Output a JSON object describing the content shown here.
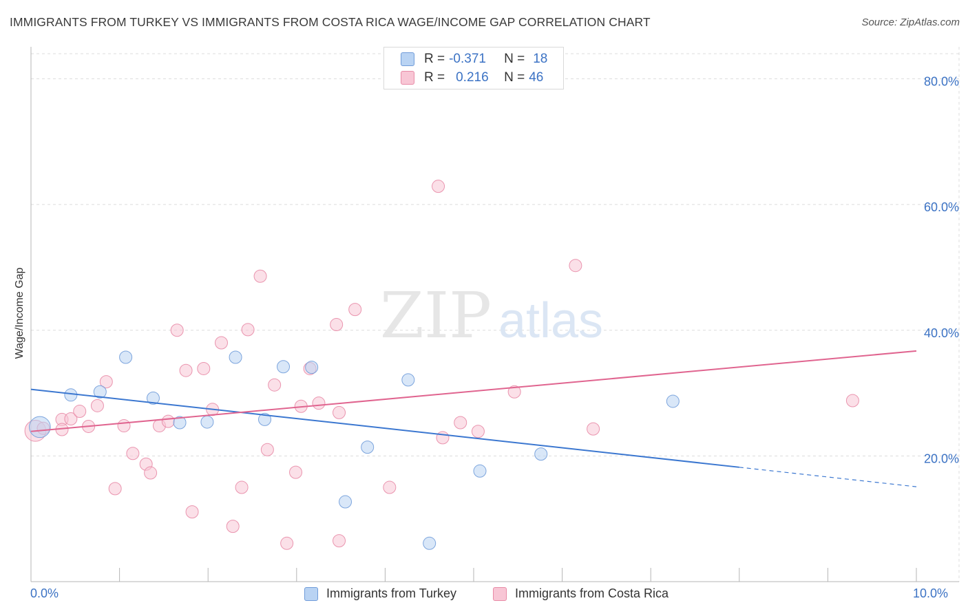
{
  "title": "IMMIGRANTS FROM TURKEY VS IMMIGRANTS FROM COSTA RICA WAGE/INCOME GAP CORRELATION CHART",
  "source": "Source: ZipAtlas.com",
  "watermark": {
    "zip": "ZIP",
    "atlas": "atlas"
  },
  "colors": {
    "turkey_fill": "#b9d3f3",
    "turkey_stroke": "#6f9bd9",
    "turkey_line": "#3b77d0",
    "costarica_fill": "#f8c6d5",
    "costarica_stroke": "#e88aa6",
    "costarica_line": "#e0648f",
    "axis_label": "#3b72c4",
    "grid": "#dcdcdc"
  },
  "legend_top": {
    "rows": [
      {
        "r_label": "R = ",
        "r_value": "-0.371",
        "n_label": "N = ",
        "n_value": "18"
      },
      {
        "r_label": "R = ",
        "r_value": "0.216",
        "n_label": "N = ",
        "n_value": "46"
      }
    ]
  },
  "chart_data": {
    "type": "scatter",
    "title": "IMMIGRANTS FROM TURKEY VS IMMIGRANTS FROM COSTA RICA WAGE/INCOME GAP CORRELATION CHART",
    "xlabel": "",
    "ylabel": "Wage/Income Gap",
    "xlim": [
      0,
      10
    ],
    "ylim": [
      0,
      84
    ],
    "x_tick_labels": [
      "0.0%",
      "10.0%"
    ],
    "y_ticks": [
      20,
      40,
      60,
      80
    ],
    "y_tick_labels": [
      "20.0%",
      "40.0%",
      "60.0%",
      "80.0%"
    ],
    "grid": true,
    "series": [
      {
        "name": "Immigrants from Turkey",
        "R": -0.371,
        "N": 18,
        "points": [
          [
            0.1,
            24.6,
            1.7
          ],
          [
            0.45,
            29.7,
            1
          ],
          [
            0.78,
            30.2,
            1
          ],
          [
            1.07,
            35.7,
            1
          ],
          [
            1.38,
            29.2,
            1
          ],
          [
            1.68,
            25.3,
            1
          ],
          [
            1.99,
            25.4,
            1
          ],
          [
            2.31,
            35.7,
            1
          ],
          [
            2.64,
            25.8,
            1
          ],
          [
            2.85,
            34.2,
            1
          ],
          [
            3.17,
            34.1,
            1
          ],
          [
            3.55,
            12.7,
            1
          ],
          [
            3.8,
            21.4,
            1
          ],
          [
            4.26,
            32.1,
            1
          ],
          [
            4.5,
            6.1,
            1
          ],
          [
            5.07,
            17.6,
            1
          ],
          [
            5.76,
            20.3,
            1
          ],
          [
            7.25,
            28.7,
            1
          ]
        ],
        "trend": {
          "x0": 0.0,
          "y0": 30.6,
          "x1": 8.0,
          "y1": 18.2,
          "dash_to_x": 10.0,
          "dash_to_y": 15.1
        }
      },
      {
        "name": "Immigrants from Costa Rica",
        "R": 0.216,
        "N": 46,
        "points": [
          [
            0.05,
            24.0,
            1.7
          ],
          [
            0.14,
            24.4,
            1
          ],
          [
            0.35,
            25.8,
            1
          ],
          [
            0.35,
            24.2,
            1
          ],
          [
            0.45,
            25.9,
            1
          ],
          [
            0.55,
            27.1,
            1
          ],
          [
            0.65,
            24.7,
            1
          ],
          [
            0.75,
            28.0,
            1
          ],
          [
            0.85,
            31.8,
            1
          ],
          [
            0.95,
            14.8,
            1
          ],
          [
            1.05,
            24.8,
            1
          ],
          [
            1.15,
            20.4,
            1
          ],
          [
            1.3,
            18.7,
            1
          ],
          [
            1.35,
            17.3,
            1
          ],
          [
            1.45,
            24.8,
            1
          ],
          [
            1.55,
            25.5,
            1
          ],
          [
            1.65,
            40.0,
            1
          ],
          [
            1.75,
            33.6,
            1
          ],
          [
            1.82,
            11.1,
            1
          ],
          [
            1.95,
            33.9,
            1
          ],
          [
            2.05,
            27.4,
            1
          ],
          [
            2.15,
            38.0,
            1
          ],
          [
            2.28,
            8.8,
            1
          ],
          [
            2.38,
            15.0,
            1
          ],
          [
            2.45,
            40.1,
            1
          ],
          [
            2.59,
            48.6,
            1
          ],
          [
            2.67,
            21.0,
            1
          ],
          [
            2.75,
            31.3,
            1
          ],
          [
            2.89,
            6.1,
            1
          ],
          [
            2.99,
            17.4,
            1
          ],
          [
            3.05,
            27.9,
            1
          ],
          [
            3.15,
            33.9,
            1
          ],
          [
            3.25,
            28.4,
            1
          ],
          [
            3.48,
            6.5,
            1
          ],
          [
            3.48,
            26.9,
            1
          ],
          [
            3.45,
            40.9,
            1
          ],
          [
            3.66,
            43.3,
            1
          ],
          [
            4.05,
            15.0,
            1
          ],
          [
            4.65,
            22.9,
            1
          ],
          [
            4.6,
            62.9,
            1
          ],
          [
            4.85,
            25.3,
            1
          ],
          [
            5.05,
            23.9,
            1
          ],
          [
            5.46,
            30.2,
            1
          ],
          [
            6.15,
            50.3,
            1
          ],
          [
            6.35,
            24.3,
            1
          ],
          [
            9.28,
            28.8,
            1
          ]
        ],
        "trend": {
          "x0": 0.0,
          "y0": 23.9,
          "x1": 10.0,
          "y1": 36.7
        }
      }
    ]
  },
  "bottom_legend": {
    "turkey_label": "Immigrants from Turkey",
    "costarica_label": "Immigrants from Costa Rica"
  }
}
